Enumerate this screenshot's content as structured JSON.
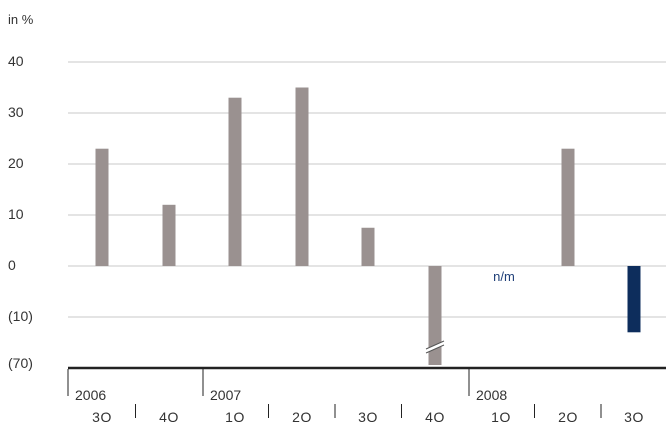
{
  "chart_data": {
    "type": "bar",
    "unit_label": "in %",
    "y_ticks": [
      "40",
      "30",
      "20",
      "10",
      "0",
      "(10)",
      "(70)"
    ],
    "ylim": [
      -70,
      40
    ],
    "axis_break": true,
    "grid": true,
    "groups": [
      {
        "year": "2006",
        "quarters": [
          "3Q",
          "4Q"
        ]
      },
      {
        "year": "2007",
        "quarters": [
          "1Q",
          "2Q",
          "3Q",
          "4Q"
        ]
      },
      {
        "year": "2008",
        "quarters": [
          "1Q",
          "2Q",
          "3Q"
        ]
      }
    ],
    "categories": [
      "2006 3Q",
      "2006 4Q",
      "2007 1Q",
      "2007 2Q",
      "2007 3Q",
      "2007 4Q",
      "2008 1Q",
      "2008 2Q",
      "2008 3Q"
    ],
    "values": [
      23,
      12,
      33,
      35,
      7.5,
      -70,
      null,
      23,
      -13
    ],
    "annotations": [
      {
        "category": "2008 1Q",
        "text": "n/m"
      }
    ],
    "colors": {
      "bar": "#9a9190",
      "highlight": "#0d2d5c",
      "grid": "#c8c8c8",
      "axis": "#222222",
      "text": "#333333",
      "note": "#1f3f78"
    },
    "highlight_index": 8
  }
}
